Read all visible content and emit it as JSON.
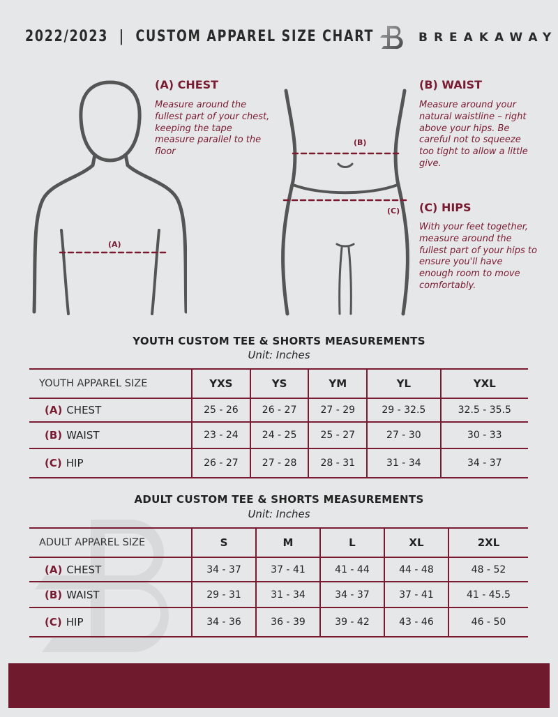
{
  "header": {
    "title": "2022/2023  |  CUSTOM APPAREL SIZE CHART",
    "brand": "BREAKAWAY"
  },
  "colors": {
    "accent": "#7a1a30",
    "background": "#e6e7e9",
    "footer": "#701a2e"
  },
  "guides": {
    "chest": {
      "heading": "(A) CHEST",
      "text": "Measure around the fullest part of your chest, keeping the tape measure parallel to the floor",
      "marker": "(A)"
    },
    "waist": {
      "heading": "(B) WAIST",
      "text": "Measure around your natural waistline – right above your hips. Be careful not to squeeze too tight to allow a little give.",
      "marker": "(B)"
    },
    "hips": {
      "heading": "(C) HIPS",
      "text": "With your feet together, measure around the fullest part of your hips to ensure you'll have enough room to move comfortably.",
      "marker": "(C)"
    }
  },
  "youth": {
    "title": "YOUTH CUSTOM TEE & SHORTS MEASUREMENTS",
    "unit": "Unit: Inches",
    "header": "YOUTH APPAREL SIZE",
    "sizes": [
      "YXS",
      "YS",
      "YM",
      "YL",
      "YXL"
    ],
    "rows": [
      {
        "code": "(A)",
        "label": "CHEST",
        "values": [
          "25 - 26",
          "26 - 27",
          "27 - 29",
          "29 - 32.5",
          "32.5 - 35.5"
        ]
      },
      {
        "code": "(B)",
        "label": "WAIST",
        "values": [
          "23 - 24",
          "24 - 25",
          "25 - 27",
          "27 - 30",
          "30 - 33"
        ]
      },
      {
        "code": "(C)",
        "label": "HIP",
        "values": [
          "26 - 27",
          "27 - 28",
          "28 - 31",
          "31 - 34",
          "34 - 37"
        ]
      }
    ]
  },
  "adult": {
    "title": "ADULT CUSTOM TEE & SHORTS MEASUREMENTS",
    "unit": "Unit: Inches",
    "header": "ADULT APPAREL SIZE",
    "sizes": [
      "S",
      "M",
      "L",
      "XL",
      "2XL"
    ],
    "rows": [
      {
        "code": "(A)",
        "label": "CHEST",
        "values": [
          "34 - 37",
          "37 - 41",
          "41 - 44",
          "44 - 48",
          "48 - 52"
        ]
      },
      {
        "code": "(B)",
        "label": "WAIST",
        "values": [
          "29 - 31",
          "31 - 34",
          "34 - 37",
          "37 - 41",
          "41 - 45.5"
        ]
      },
      {
        "code": "(C)",
        "label": "HIP",
        "values": [
          "34 - 36",
          "36 - 39",
          "39 - 42",
          "43 - 46",
          "46 - 50"
        ]
      }
    ]
  }
}
